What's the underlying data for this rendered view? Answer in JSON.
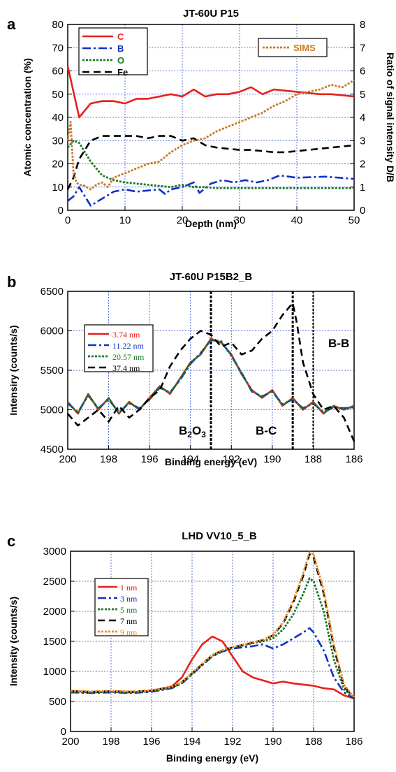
{
  "chart_data": [
    {
      "panel_letter": "a",
      "type": "line",
      "title": "JT-60U P15",
      "xlabel": "Depth (nm)",
      "ylabel": "Atomic concentration (%)",
      "y2label": "Ratio of signal intensity D/B",
      "xlim": [
        0,
        50
      ],
      "ylim": [
        0,
        80
      ],
      "y2lim": [
        0,
        8
      ],
      "x_ticks": [
        "0",
        "10",
        "20",
        "30",
        "40",
        "50"
      ],
      "y_ticks": [
        "0",
        "10",
        "20",
        "30",
        "40",
        "50",
        "60",
        "70",
        "80"
      ],
      "y2_ticks": [
        "0",
        "1",
        "2",
        "3",
        "4",
        "5",
        "6",
        "7",
        "8"
      ],
      "grid": true,
      "legend_position": "top-left",
      "legend2_position": "top-right",
      "series": [
        {
          "name": "C",
          "color": "#e8201c",
          "dash": "solid",
          "axis": "left",
          "x": [
            0,
            2,
            4,
            6,
            8,
            10,
            12,
            14,
            16,
            18,
            20,
            22,
            24,
            26,
            28,
            30,
            32,
            34,
            36,
            38,
            40,
            42,
            44,
            46,
            48,
            50
          ],
          "y": [
            62,
            40,
            46,
            47,
            47,
            46,
            48,
            48,
            49,
            50,
            49,
            52,
            49,
            50,
            50,
            51,
            53,
            50,
            52,
            51.5,
            51,
            50.5,
            50,
            50,
            49.5,
            49
          ]
        },
        {
          "name": "B",
          "color": "#1030c8",
          "dash": "dashdot",
          "axis": "left",
          "x": [
            0,
            1,
            2,
            3,
            4,
            6,
            8,
            10,
            12,
            14,
            16,
            17,
            18,
            20,
            22,
            23,
            25,
            27,
            29,
            31,
            33,
            35,
            37,
            40,
            45,
            50
          ],
          "y": [
            4,
            6,
            10,
            6,
            2,
            5,
            8,
            9,
            8,
            8.5,
            9,
            7,
            9,
            10,
            12,
            7.5,
            11.5,
            13,
            12,
            13,
            12,
            13,
            15,
            14,
            14.5,
            13.5
          ]
        },
        {
          "name": "O",
          "color": "#1b7a2a",
          "dash": "dotted",
          "axis": "left",
          "x": [
            0,
            1,
            2,
            4,
            6,
            8,
            10,
            12,
            14,
            16,
            18,
            20,
            22,
            24,
            26,
            28,
            30,
            32,
            34,
            36,
            38,
            40,
            42,
            44,
            46,
            48,
            50
          ],
          "y": [
            27,
            30,
            29,
            21,
            15,
            13,
            12,
            11.5,
            11,
            10.5,
            10,
            11,
            10,
            10,
            9.5,
            9.5,
            9.5,
            9.5,
            9.5,
            9.5,
            9.5,
            9.5,
            9.5,
            9.5,
            9.5,
            9.5,
            9.5
          ]
        },
        {
          "name": "Fe",
          "color": "#000000",
          "dash": "dashed",
          "axis": "left",
          "x": [
            0,
            1,
            2,
            3,
            4,
            6,
            8,
            10,
            12,
            14,
            16,
            18,
            20,
            22,
            24,
            26,
            28,
            30,
            32,
            34,
            36,
            38,
            40,
            42,
            44,
            46,
            48,
            50
          ],
          "y": [
            9,
            14,
            22,
            26,
            30,
            32,
            32,
            32,
            32,
            31,
            32,
            32,
            30,
            31,
            28,
            27,
            26.5,
            26,
            26,
            25.5,
            25,
            25,
            25.5,
            26,
            26.5,
            27,
            27.5,
            28
          ]
        },
        {
          "name": "SIMS",
          "color": "#c87a1e",
          "dash": "dotted",
          "axis": "right",
          "x": [
            0,
            0.5,
            1,
            1.5,
            2,
            3,
            4,
            5,
            6,
            7,
            8,
            9,
            10,
            12,
            14,
            16,
            18,
            20,
            22,
            24,
            26,
            28,
            30,
            32,
            34,
            36,
            38,
            40,
            42,
            44,
            46,
            48,
            50
          ],
          "y": [
            3.0,
            3.8,
            1.6,
            1.2,
            1.1,
            1.05,
            0.9,
            1.1,
            1.2,
            1.0,
            1.4,
            1.5,
            1.6,
            1.8,
            2.0,
            2.1,
            2.5,
            2.8,
            3.0,
            3.1,
            3.4,
            3.6,
            3.8,
            4.0,
            4.2,
            4.5,
            4.7,
            5.0,
            5.1,
            5.2,
            5.4,
            5.3,
            5.6
          ]
        }
      ]
    },
    {
      "panel_letter": "b",
      "type": "line",
      "title": "JT-60U P15B2_B",
      "xlabel": "Binding energy (eV)",
      "ylabel": "Intensiry (counts/s)",
      "xlim": [
        200,
        186
      ],
      "ylim": [
        4500,
        6500
      ],
      "x_ticks": [
        "200",
        "198",
        "196",
        "194",
        "192",
        "190",
        "188",
        "186"
      ],
      "y_ticks": [
        "4500",
        "5000",
        "5500",
        "6000",
        "6500"
      ],
      "grid": true,
      "legend_position": "top-left",
      "annotations": [
        "B2O3",
        "B-C",
        "B-B"
      ],
      "vlines": [
        193,
        189,
        188
      ],
      "series": [
        {
          "name": "3.74 nm",
          "color": "#e8201c",
          "dash": "solid",
          "x": [
            200,
            199.5,
            199,
            198.5,
            198,
            197.5,
            197,
            196.5,
            196,
            195.5,
            195,
            194.5,
            194,
            193.5,
            193,
            192.5,
            192,
            191.5,
            191,
            190.5,
            190,
            189.5,
            189,
            188.5,
            188,
            187.5,
            187,
            186.5,
            186
          ],
          "y": [
            5100,
            4950,
            5200,
            5000,
            5150,
            4950,
            5100,
            5000,
            5150,
            5300,
            5200,
            5400,
            5600,
            5700,
            5900,
            5850,
            5700,
            5450,
            5250,
            5150,
            5250,
            5050,
            5150,
            5000,
            5100,
            4950,
            5050,
            5000,
            5050
          ]
        },
        {
          "name": "11.22 nm",
          "color": "#1030c8",
          "dash": "dashdot",
          "x": [
            200,
            199.5,
            199,
            198.5,
            198,
            197.5,
            197,
            196.5,
            196,
            195.5,
            195,
            194.5,
            194,
            193.5,
            193,
            192.5,
            192,
            191.5,
            191,
            190.5,
            190,
            189.5,
            189,
            188.5,
            188,
            187.5,
            187,
            186.5,
            186
          ],
          "y": [
            5080,
            4970,
            5180,
            5020,
            5130,
            4970,
            5080,
            5020,
            5130,
            5280,
            5220,
            5380,
            5580,
            5720,
            5880,
            5870,
            5680,
            5470,
            5230,
            5170,
            5230,
            5070,
            5130,
            5020,
            5080,
            4970,
            5030,
            5020,
            5030
          ]
        },
        {
          "name": "20.57 nm",
          "color": "#1b7a2a",
          "dash": "dotted",
          "x": [
            200,
            199.5,
            199,
            198.5,
            198,
            197.5,
            197,
            196.5,
            196,
            195.5,
            195,
            194.5,
            194,
            193.5,
            193,
            192.5,
            192,
            191.5,
            191,
            190.5,
            190,
            189.5,
            189,
            188.5,
            188,
            187.5,
            187,
            186.5,
            186
          ],
          "y": [
            5090,
            4960,
            5190,
            5010,
            5140,
            4960,
            5090,
            5010,
            5140,
            5290,
            5210,
            5390,
            5590,
            5710,
            5890,
            5860,
            5690,
            5460,
            5240,
            5160,
            5240,
            5060,
            5140,
            5010,
            5090,
            4960,
            5040,
            5010,
            5040
          ]
        },
        {
          "name": "37.4 nm",
          "color": "#000000",
          "dash": "dashed",
          "x": [
            200,
            199.5,
            199,
            198.5,
            198,
            197.5,
            197,
            196.5,
            196,
            195.5,
            195,
            194.5,
            194,
            193.5,
            193,
            192.5,
            192,
            191.5,
            191,
            190.5,
            190,
            189.5,
            189,
            188.8,
            188.5,
            188,
            187.5,
            187,
            186.5,
            186
          ],
          "y": [
            4950,
            4800,
            4900,
            5000,
            4850,
            5050,
            4900,
            5000,
            5150,
            5250,
            5550,
            5750,
            5900,
            6000,
            5950,
            5800,
            5850,
            5700,
            5750,
            5900,
            6000,
            6200,
            6350,
            6100,
            5600,
            5200,
            5000,
            5050,
            4900,
            4600
          ]
        }
      ]
    },
    {
      "panel_letter": "c",
      "type": "line",
      "title": "LHD VV10_5_B",
      "xlabel": "Binding energy (eV)",
      "ylabel": "Intensity (counts/s)",
      "xlim": [
        200,
        186
      ],
      "ylim": [
        0,
        3000
      ],
      "x_ticks": [
        "200",
        "198",
        "196",
        "194",
        "192",
        "190",
        "188",
        "186"
      ],
      "y_ticks": [
        "0",
        "500",
        "1000",
        "1500",
        "2000",
        "2500",
        "3000"
      ],
      "grid": true,
      "legend_position": "top-left",
      "series": [
        {
          "name": "1 nm",
          "color": "#e8201c",
          "dash": "solid",
          "x": [
            200,
            199,
            198,
            197,
            196,
            195,
            194.5,
            194,
            193.5,
            193,
            192.5,
            192,
            191.5,
            191,
            190.5,
            190,
            189.5,
            189,
            188.5,
            188,
            187.5,
            187,
            186.5,
            186
          ],
          "y": [
            680,
            650,
            660,
            650,
            680,
            750,
            900,
            1200,
            1450,
            1580,
            1500,
            1250,
            1000,
            900,
            850,
            800,
            830,
            800,
            780,
            760,
            720,
            700,
            600,
            550
          ]
        },
        {
          "name": "3 nm",
          "color": "#1030c8",
          "dash": "dashdot",
          "x": [
            200,
            199,
            198,
            197,
            196,
            195,
            194.5,
            194,
            193.5,
            193,
            192.5,
            192,
            191.5,
            191,
            190.5,
            190,
            189.5,
            189,
            188.5,
            188.2,
            188,
            187.5,
            187,
            186.5,
            186
          ],
          "y": [
            650,
            640,
            650,
            640,
            660,
            720,
            800,
            950,
            1100,
            1250,
            1330,
            1380,
            1400,
            1420,
            1450,
            1380,
            1450,
            1550,
            1650,
            1720,
            1650,
            1350,
            900,
            650,
            550
          ]
        },
        {
          "name": "5 nm",
          "color": "#1b7a2a",
          "dash": "dotted",
          "x": [
            200,
            199,
            198,
            197,
            196,
            195,
            194.5,
            194,
            193.5,
            193,
            192.5,
            192,
            191.5,
            191,
            190.5,
            190,
            189.5,
            189,
            188.5,
            188.2,
            188,
            187.5,
            187,
            186.5,
            186
          ],
          "y": [
            660,
            650,
            660,
            650,
            670,
            730,
            810,
            960,
            1110,
            1260,
            1340,
            1400,
            1430,
            1470,
            1500,
            1550,
            1700,
            1950,
            2300,
            2550,
            2500,
            2000,
            1200,
            700,
            560
          ]
        },
        {
          "name": "7 nm",
          "color": "#000000",
          "dash": "dashed",
          "x": [
            200,
            199,
            198,
            197,
            196,
            195,
            194.5,
            194,
            193.5,
            193,
            192.5,
            192,
            191.5,
            191,
            190.5,
            190,
            189.5,
            189,
            188.5,
            188.2,
            188,
            187.5,
            187,
            186.5,
            186
          ],
          "y": [
            670,
            660,
            670,
            660,
            680,
            740,
            820,
            970,
            1120,
            1270,
            1350,
            1400,
            1440,
            1480,
            1520,
            1600,
            1800,
            2150,
            2600,
            2950,
            2900,
            2300,
            1400,
            750,
            560
          ]
        },
        {
          "name": "9 nm",
          "color": "#f08c1c",
          "dash": "dotted",
          "x": [
            200,
            199,
            198,
            197,
            196,
            195,
            194.5,
            194,
            193.5,
            193,
            192.5,
            192,
            191.5,
            191,
            190.5,
            190,
            189.5,
            189,
            188.5,
            188.2,
            188,
            187.5,
            187,
            186.5,
            186
          ],
          "y": [
            675,
            665,
            675,
            665,
            685,
            745,
            825,
            975,
            1125,
            1275,
            1355,
            1405,
            1445,
            1485,
            1525,
            1610,
            1820,
            2180,
            2650,
            2980,
            2950,
            2350,
            1450,
            780,
            570
          ]
        }
      ]
    }
  ]
}
